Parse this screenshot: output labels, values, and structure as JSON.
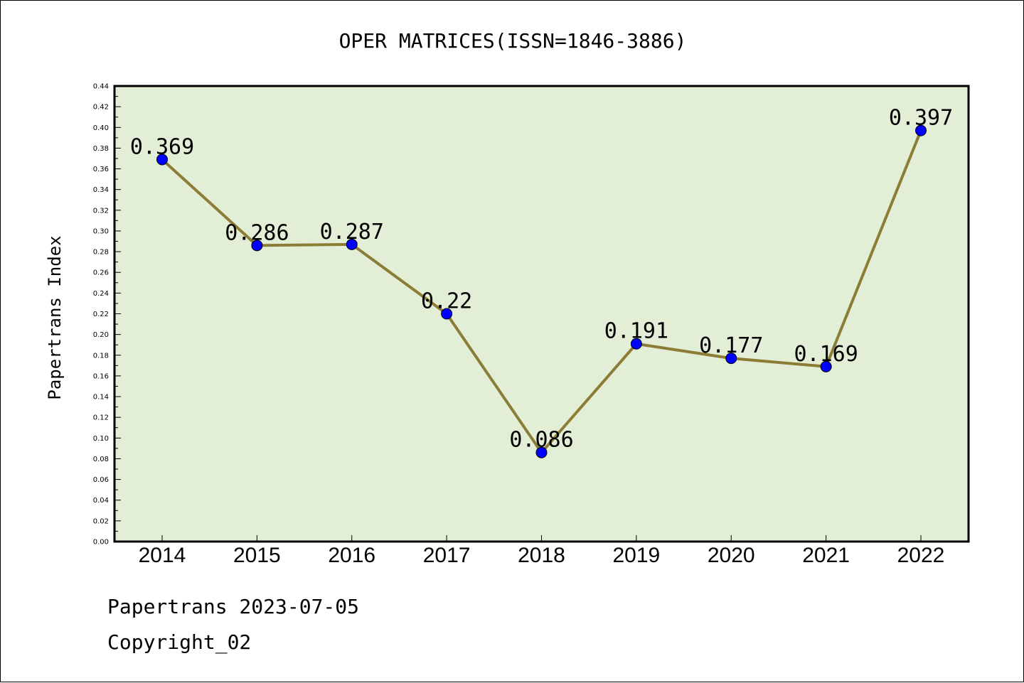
{
  "chart_data": {
    "type": "line",
    "title": "OPER MATRICES(ISSN=1846-3886)",
    "xlabel": "",
    "ylabel": "Papertrans Index",
    "categories": [
      "2014",
      "2015",
      "2016",
      "2017",
      "2018",
      "2019",
      "2020",
      "2021",
      "2022"
    ],
    "series": [
      {
        "values": [
          0.369,
          0.286,
          0.287,
          0.22,
          0.086,
          0.191,
          0.177,
          0.169,
          0.397
        ]
      }
    ],
    "data_labels": [
      "0.369",
      "0.286",
      "0.287",
      "0.22",
      "0.086",
      "0.191",
      "0.177",
      "0.169",
      "0.397"
    ],
    "ylim": [
      0,
      0.44
    ],
    "yticks": [
      "0.00",
      "0.02",
      "0.04",
      "0.06",
      "0.08",
      "0.10",
      "0.12",
      "0.14",
      "0.16",
      "0.18",
      "0.20",
      "0.22",
      "0.24",
      "0.26",
      "0.28",
      "0.30",
      "0.32",
      "0.34",
      "0.36",
      "0.38",
      "0.40",
      "0.42",
      "0.44"
    ],
    "grid": false,
    "legend": "none",
    "colors": {
      "plot_background": "#e2efd6",
      "line": "#8b7d35",
      "marker": "#0000ff"
    }
  },
  "footer": {
    "line1": "Papertrans 2023-07-05",
    "line2": "Copyright_02"
  }
}
